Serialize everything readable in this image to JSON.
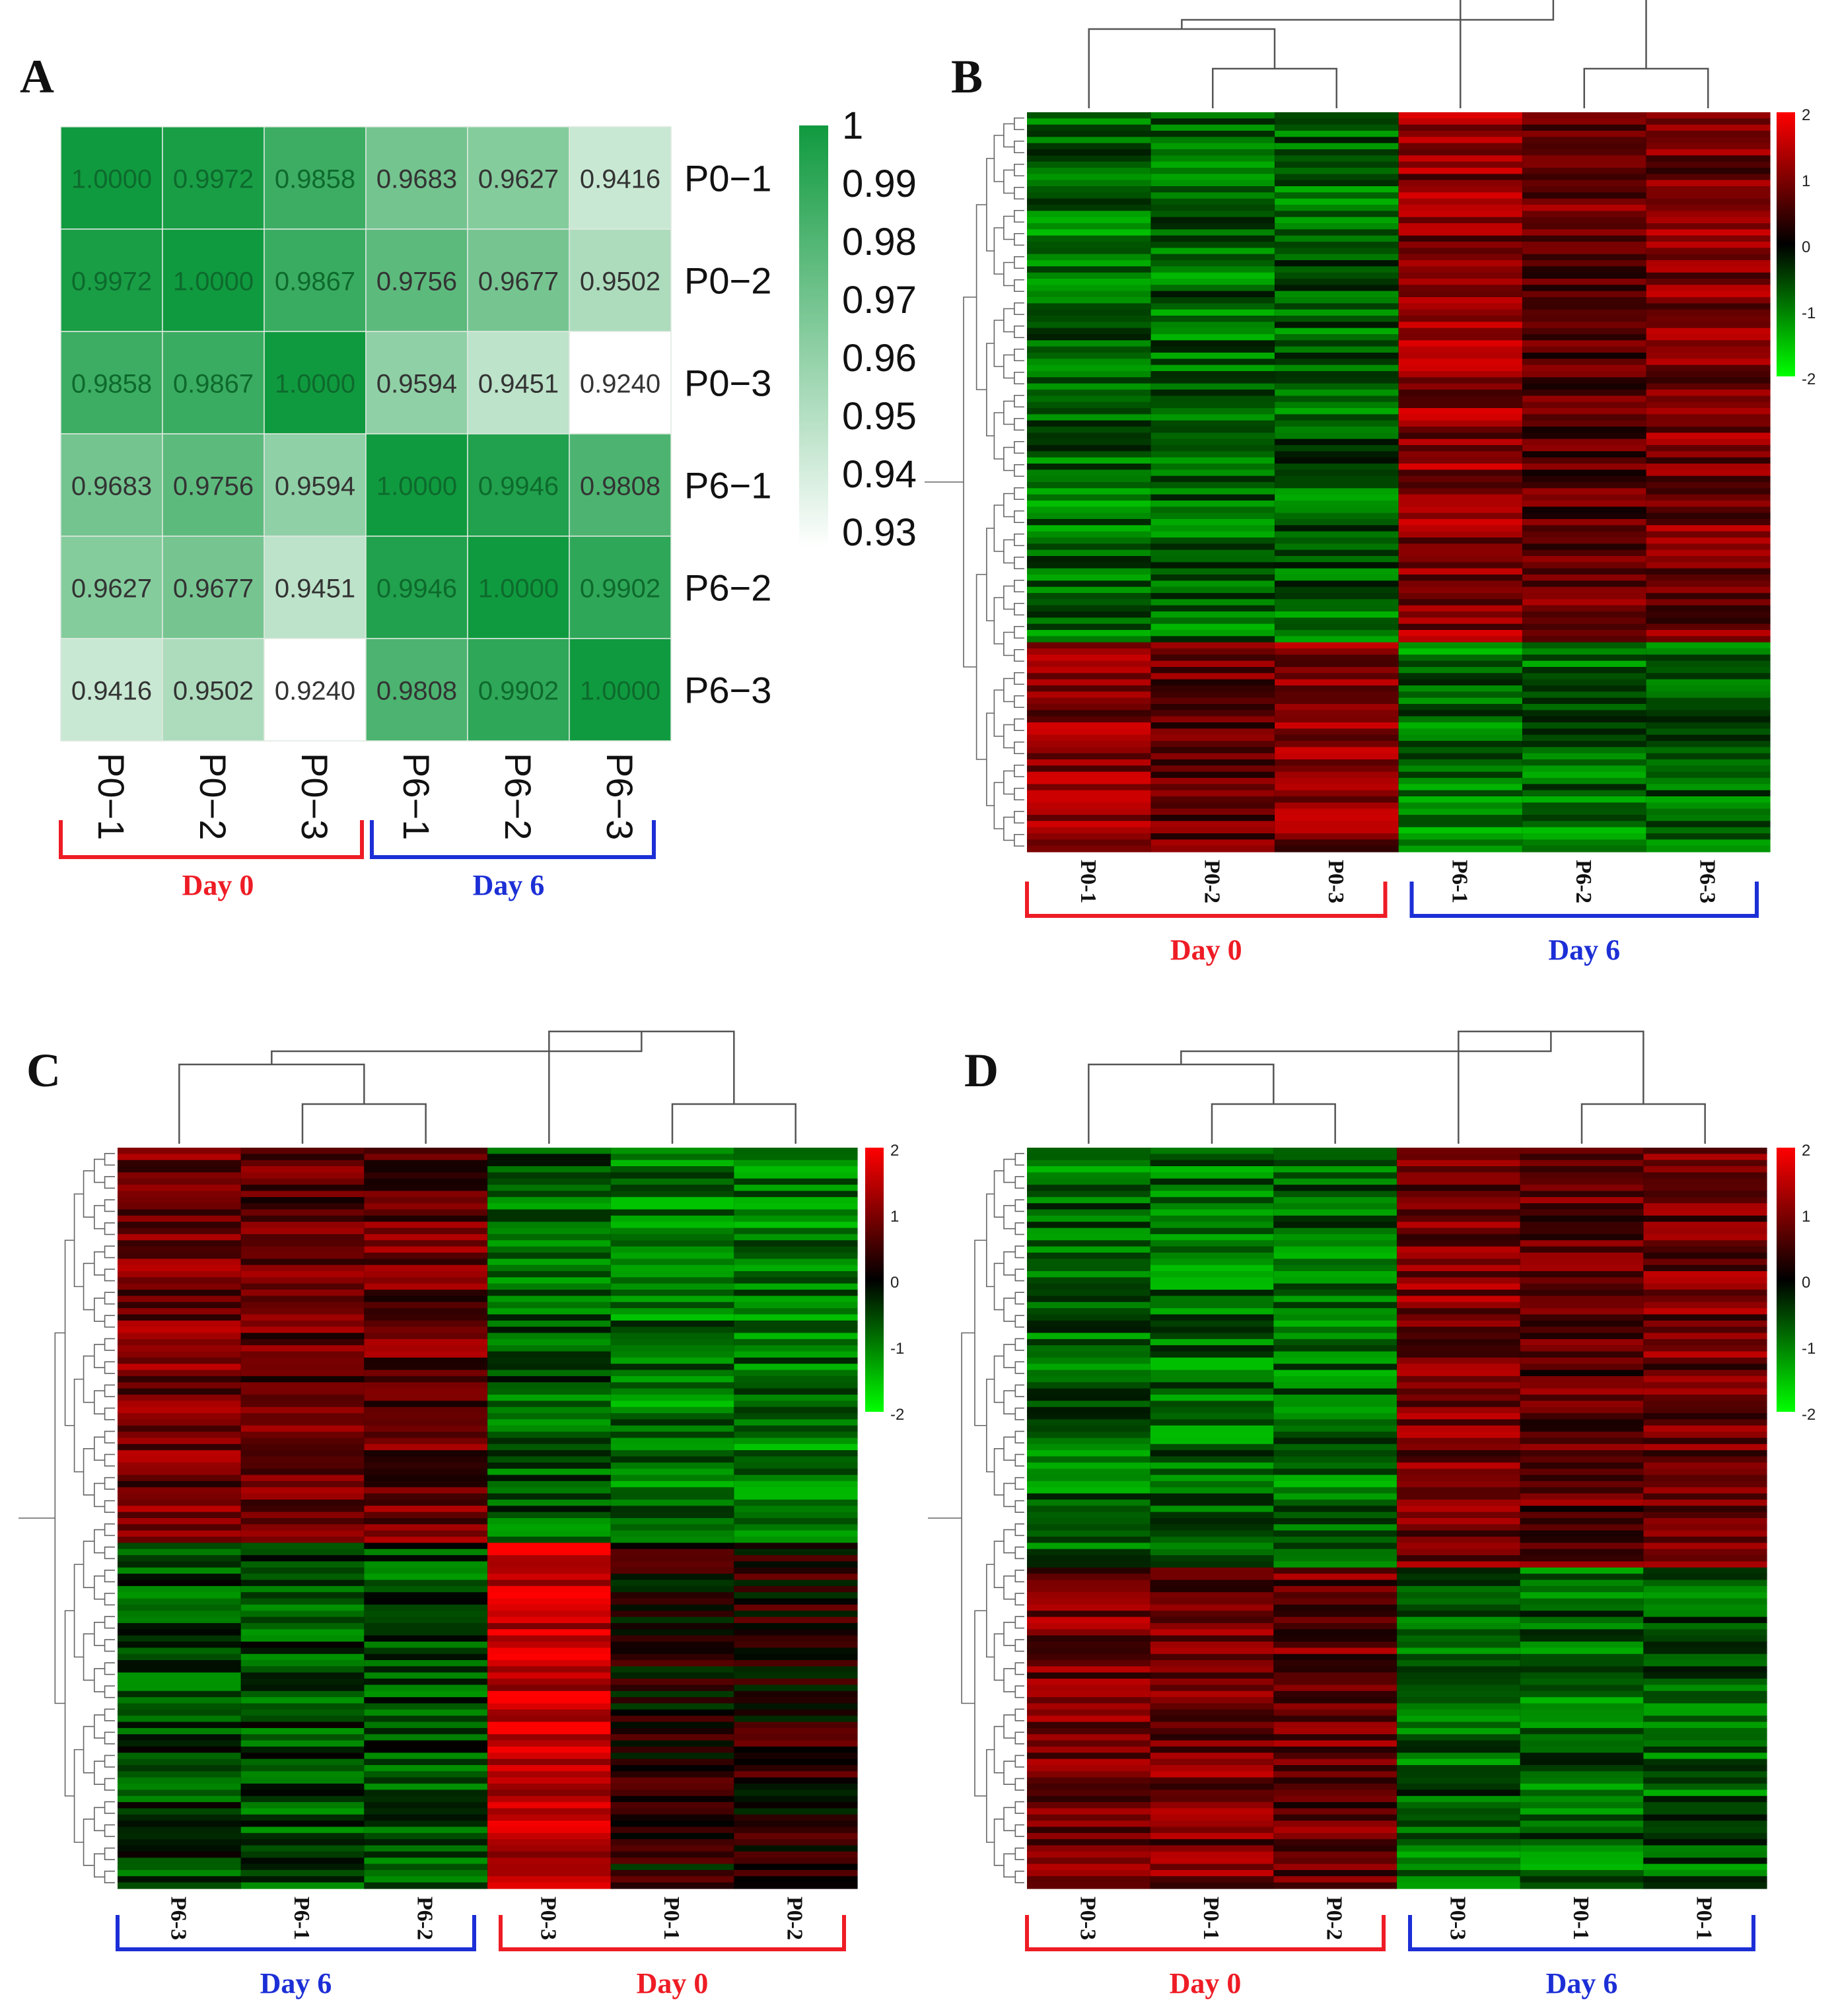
{
  "chart_data": [
    {
      "panel": "A",
      "type": "heatmap",
      "title": "",
      "rows": [
        "P0−1",
        "P0−2",
        "P0−3",
        "P6−1",
        "P6−2",
        "P6−3"
      ],
      "cols": [
        "P0−1",
        "P0−2",
        "P0−3",
        "P6−1",
        "P6−2",
        "P6−3"
      ],
      "values": [
        [
          1.0,
          0.9972,
          0.9858,
          0.9683,
          0.9627,
          0.9416
        ],
        [
          0.9972,
          1.0,
          0.9867,
          0.9756,
          0.9677,
          0.9502
        ],
        [
          0.9858,
          0.9867,
          1.0,
          0.9594,
          0.9451,
          0.924
        ],
        [
          0.9683,
          0.9756,
          0.9594,
          1.0,
          0.9946,
          0.9808
        ],
        [
          0.9627,
          0.9677,
          0.9451,
          0.9946,
          1.0,
          0.9902
        ],
        [
          0.9416,
          0.9502,
          0.924,
          0.9808,
          0.9902,
          1.0
        ]
      ],
      "cell_labels": [
        [
          "1.0000",
          "0.9972",
          "0.9858",
          "0.9683",
          "0.9627",
          "0.9416"
        ],
        [
          "0.9972",
          "1.0000",
          "0.9867",
          "0.9756",
          "0.9677",
          "0.9502"
        ],
        [
          "0.9858",
          "0.9867",
          "1.0000",
          "0.9594",
          "0.9451",
          "0.9240"
        ],
        [
          "0.9683",
          "0.9756",
          "0.9594",
          "1.0000",
          "0.9946",
          "0.9808"
        ],
        [
          "0.9627",
          "0.9677",
          "0.9451",
          "0.9946",
          "1.0000",
          "0.9902"
        ],
        [
          "0.9416",
          "0.9502",
          "0.9240",
          "0.9808",
          "0.9902",
          "1.0000"
        ]
      ],
      "colorbar_ticks": [
        "1",
        "0.99",
        "0.98",
        "0.97",
        "0.96",
        "0.95",
        "0.94",
        "0.93"
      ],
      "colorbar_range": [
        0.924,
        1.0
      ],
      "colors": {
        "high": "#109a3f",
        "low": "#ffffff"
      },
      "groups": [
        {
          "label": "Day 0",
          "color": "#ee1c25",
          "span": [
            0,
            2
          ]
        },
        {
          "label": "Day 6",
          "color": "#1c2fd6",
          "span": [
            3,
            5
          ]
        }
      ]
    },
    {
      "panel": "B",
      "type": "heatmap",
      "title": "",
      "cols": [
        "P0-1",
        "P0-2",
        "P0-3",
        "P6-1",
        "P6-2",
        "P6-3"
      ],
      "colorbar_ticks": [
        "2",
        "1",
        "0",
        "-1",
        "-2"
      ],
      "colorbar_range": [
        -2,
        2
      ],
      "colors": {
        "high": "#ff0000",
        "mid": "#000000",
        "low": "#00ff00"
      },
      "row_blocks": [
        {
          "fraction": 0.72,
          "means": [
            -0.85,
            -0.8,
            -0.75,
            1.1,
            0.75,
            0.95
          ]
        },
        {
          "fraction": 0.28,
          "means": [
            1.1,
            0.85,
            1.0,
            -0.9,
            -0.85,
            -0.85
          ]
        }
      ],
      "groups": [
        {
          "label": "Day 0",
          "color": "#ee1c25",
          "span": [
            0,
            2
          ]
        },
        {
          "label": "Day 6",
          "color": "#1c2fd6",
          "span": [
            3,
            5
          ]
        }
      ]
    },
    {
      "panel": "C",
      "type": "heatmap",
      "title": "",
      "cols": [
        "P6-3",
        "P6-1",
        "P6-2",
        "P0-3",
        "P0-1",
        "P0-2"
      ],
      "colorbar_ticks": [
        "2",
        "1",
        "0",
        "-1",
        "-2"
      ],
      "colorbar_range": [
        -2,
        2
      ],
      "colors": {
        "high": "#ff0000",
        "mid": "#000000",
        "low": "#00ff00"
      },
      "row_blocks": [
        {
          "fraction": 0.535,
          "means": [
            0.9,
            0.75,
            0.8,
            -0.7,
            -0.9,
            -0.9
          ]
        },
        {
          "fraction": 0.465,
          "means": [
            -0.55,
            -0.55,
            -0.6,
            1.6,
            0.15,
            0.25
          ]
        }
      ],
      "groups": [
        {
          "label": "Day 6",
          "color": "#1c2fd6",
          "span": [
            0,
            2
          ]
        },
        {
          "label": "Day 0",
          "color": "#ee1c25",
          "span": [
            3,
            5
          ]
        }
      ]
    },
    {
      "panel": "D",
      "type": "heatmap",
      "title": "",
      "cols": [
        "P0-3",
        "P0-1",
        "P0-2",
        "P0-3",
        "P0-1",
        "P0-1"
      ],
      "colorbar_ticks": [
        "2",
        "1",
        "0",
        "-1",
        "-2"
      ],
      "colorbar_range": [
        -2,
        2
      ],
      "colors": {
        "high": "#ff0000",
        "mid": "#000000",
        "low": "#00ff00"
      },
      "row_blocks": [
        {
          "fraction": 0.57,
          "means": [
            -0.8,
            -0.85,
            -0.85,
            0.95,
            0.7,
            0.9
          ]
        },
        {
          "fraction": 0.43,
          "means": [
            0.95,
            0.9,
            0.8,
            -0.75,
            -0.8,
            -0.75
          ]
        }
      ],
      "groups": [
        {
          "label": "Day 0",
          "color": "#ee1c25",
          "span": [
            0,
            2
          ]
        },
        {
          "label": "Day 6",
          "color": "#1c2fd6",
          "span": [
            3,
            5
          ]
        }
      ]
    }
  ]
}
